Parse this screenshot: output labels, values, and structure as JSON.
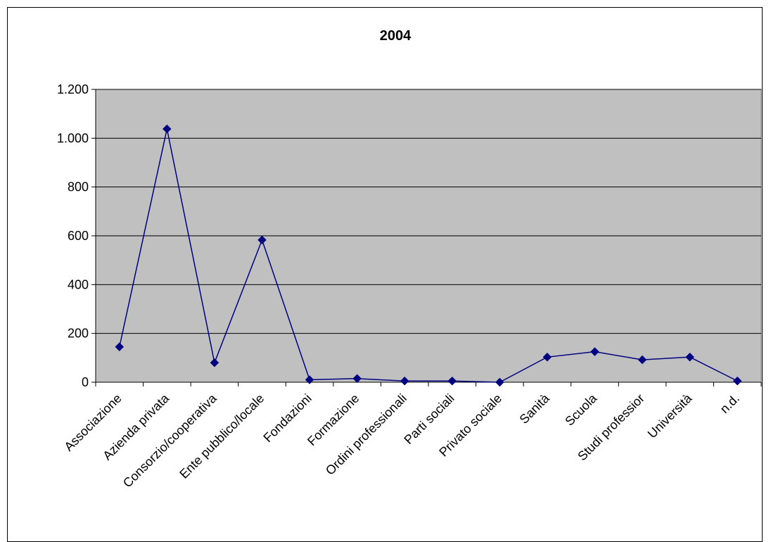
{
  "chart_data": {
    "type": "line",
    "title": "2004",
    "categories": [
      "Associazione",
      "Azienda privata",
      "Consorzio/cooperativa",
      "Ente pubblico/locale",
      "Fondazioni",
      "Formazione",
      "Ordini professionali",
      "Parti sociali",
      "Privato sociale",
      "Sanità",
      "Scuola",
      "Studi professionali",
      "Università",
      "n.d."
    ],
    "category_labels": [
      "Associazione",
      "Azienda privata",
      "Consorzio/cooperativa",
      "Ente pubblico/locale",
      "Fondazioni",
      "Formazione",
      "Ordini professionali",
      "Parti sociali",
      "Privato sociale",
      "Sanità",
      "Scuola",
      "Studi professior",
      "Università",
      "n.d."
    ],
    "values": [
      145,
      1038,
      80,
      583,
      10,
      15,
      5,
      5,
      0,
      103,
      125,
      92,
      103,
      5
    ],
    "ylim": [
      0,
      1200
    ],
    "yticks": [
      0,
      200,
      400,
      600,
      800,
      1000,
      1200
    ],
    "ytick_labels": [
      "0",
      "200",
      "400",
      "600",
      "800",
      "1.000",
      "1.200"
    ],
    "xlabel": "",
    "ylabel": "",
    "grid": true,
    "legend": "none",
    "colors": {
      "line": "#000080",
      "marker": "#000080",
      "plot_bg": "#c0c0c0",
      "grid": "#000000"
    }
  }
}
